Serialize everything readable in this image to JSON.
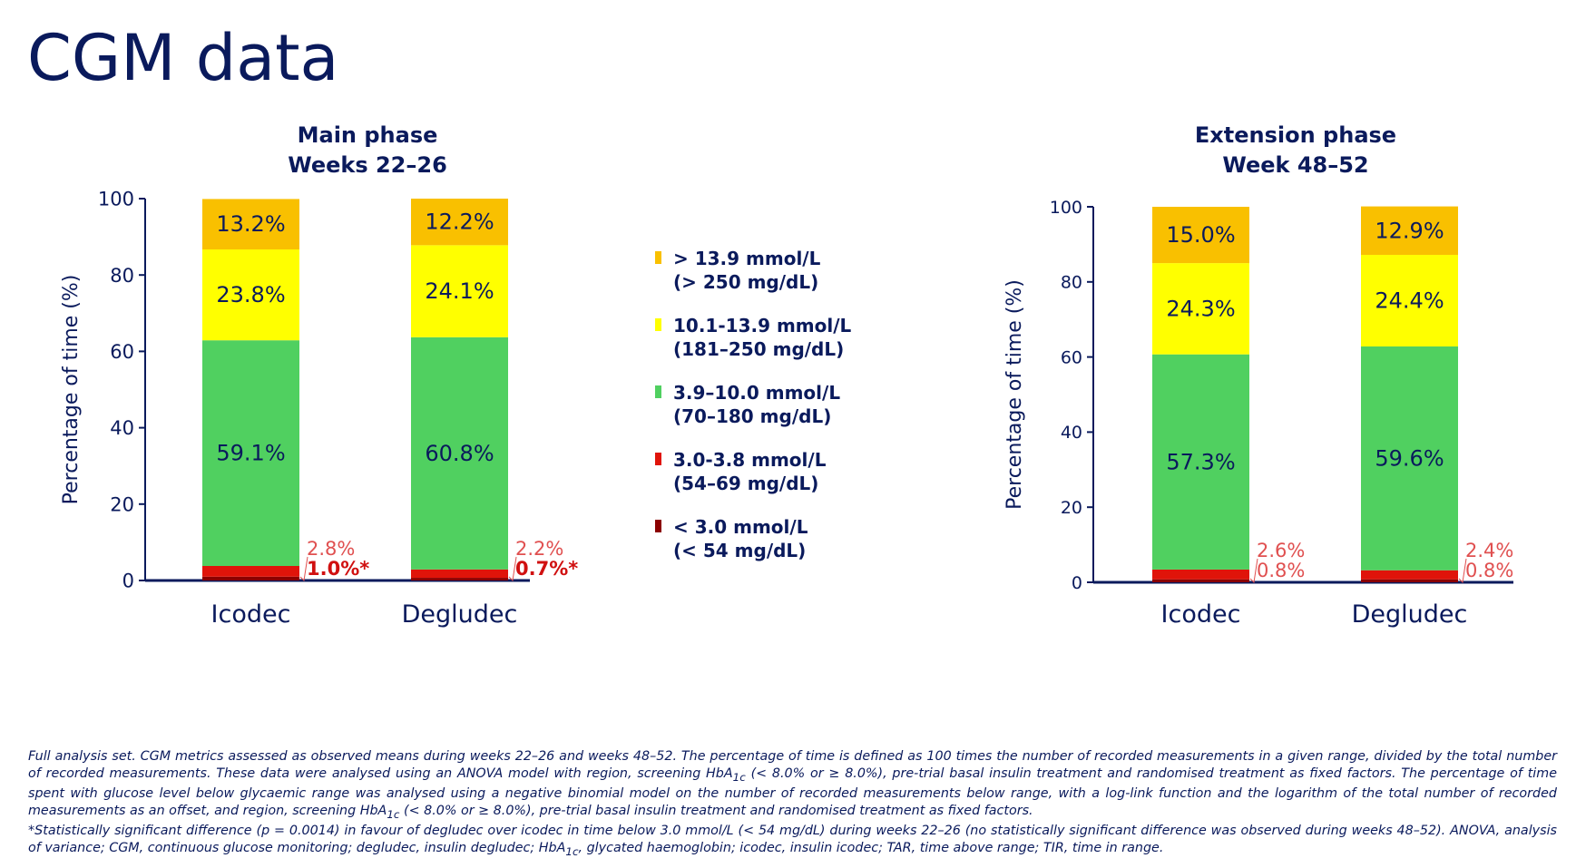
{
  "page": {
    "title": "CGM data"
  },
  "colors": {
    "very_high": "#f9c000",
    "high": "#ffff00",
    "in_range": "#50d060",
    "low": "#e0140a",
    "very_low": "#8b0000",
    "text_navy": "#0a1a5c",
    "annotation_red": "#e05050",
    "annotation_bold_red": "#d01010"
  },
  "legend": [
    {
      "key": "very_high",
      "line1": "> 13.9 mmol/L",
      "line2": "(> 250 mg/dL)",
      "color": "#f9c000"
    },
    {
      "key": "high",
      "line1": "10.1-13.9 mmol/L",
      "line2": "(181–250 mg/dL)",
      "color": "#ffff00"
    },
    {
      "key": "in_range",
      "line1": "3.9–10.0 mmol/L",
      "line2": "(70–180 mg/dL)",
      "color": "#50d060"
    },
    {
      "key": "low",
      "line1": "3.0-3.8 mmol/L",
      "line2": "(54–69 mg/dL)",
      "color": "#e0140a"
    },
    {
      "key": "very_low",
      "line1": "< 3.0 mmol/L",
      "line2": "(< 54 mg/dL)",
      "color": "#8b0000"
    }
  ],
  "chart_data": [
    {
      "type": "bar",
      "stacked": true,
      "title": "Main phase",
      "subtitle": "Weeks 22–26",
      "ylabel": "Percentage of time (%)",
      "ylim": [
        0,
        100
      ],
      "yticks": [
        "0",
        "20",
        "40",
        "60",
        "80",
        "100"
      ],
      "categories": [
        "Icodec",
        "Degludec"
      ],
      "series": [
        {
          "name": "< 3.0 mmol/L",
          "values": [
            1.0,
            0.7
          ]
        },
        {
          "name": "3.0-3.8 mmol/L",
          "values": [
            2.8,
            2.2
          ]
        },
        {
          "name": "3.9–10.0 mmol/L",
          "values": [
            59.1,
            60.8
          ]
        },
        {
          "name": "10.1-13.9 mmol/L",
          "values": [
            23.8,
            24.1
          ]
        },
        {
          "name": "> 13.9 mmol/L",
          "values": [
            13.2,
            12.2
          ]
        }
      ],
      "segment_labels": [
        {
          "high": "13.2%",
          "mid": "23.8%",
          "range": "59.1%",
          "low": "2.8%",
          "very_low": "1.0%*"
        },
        {
          "high": "12.2%",
          "mid": "24.1%",
          "range": "60.8%",
          "low": "2.2%",
          "very_low": "0.7%*"
        }
      ]
    },
    {
      "type": "bar",
      "stacked": true,
      "title": "Extension phase",
      "subtitle": "Week 48–52",
      "ylabel": "Percentage of time (%)",
      "ylim": [
        0,
        100
      ],
      "yticks": [
        "0",
        "20",
        "40",
        "60",
        "80",
        "100"
      ],
      "categories": [
        "Icodec",
        "Degludec"
      ],
      "series": [
        {
          "name": "< 3.0 mmol/L",
          "values": [
            0.8,
            0.8
          ]
        },
        {
          "name": "3.0-3.8 mmol/L",
          "values": [
            2.6,
            2.4
          ]
        },
        {
          "name": "3.9–10.0 mmol/L",
          "values": [
            57.3,
            59.6
          ]
        },
        {
          "name": "10.1-13.9 mmol/L",
          "values": [
            24.3,
            24.4
          ]
        },
        {
          "name": "> 13.9 mmol/L",
          "values": [
            15.0,
            12.9
          ]
        }
      ],
      "segment_labels": [
        {
          "high": "15.0%",
          "mid": "24.3%",
          "range": "57.3%",
          "low": "2.6%",
          "very_low": "0.8%"
        },
        {
          "high": "12.9%",
          "mid": "24.4%",
          "range": "59.6%",
          "low": "2.4%",
          "very_low": "0.8%"
        }
      ]
    }
  ],
  "footnote": {
    "p1_a": "Full analysis set. CGM metrics assessed as observed means during weeks 22–26 and weeks 48–52. The percentage of time is defined as 100 times the number of recorded measurements in a given range, divided by the total number of recorded measurements. These data were analysed using an ANOVA model with region, screening HbA",
    "p1_b": " (< 8.0% or ≥ 8.0%), pre-trial basal insulin treatment and randomised treatment as fixed factors. The percentage of time spent with glucose level below glycaemic range was analysed using a negative binomial model on the number of recorded measurements below range, with a log-link function and the logarithm of the total number of recorded measurements as an offset, and region, screening HbA",
    "p1_c": " (< 8.0% or ≥ 8.0%), pre-trial basal insulin treatment and randomised treatment as fixed factors.",
    "p2_a": "*Statistically significant difference (p = 0.0014) in favour of degludec over icodec in time below 3.0 mmol/L (< 54 mg/dL) during weeks 22–26 (no statistically significant difference was observed during weeks 48–52). ANOVA, analysis of variance; CGM, continuous glucose monitoring; degludec, insulin degludec; HbA",
    "p2_b": ", glycated haemoglobin; icodec, insulin icodec; TAR, time above range; TIR, time in range.",
    "sub": "1c"
  }
}
